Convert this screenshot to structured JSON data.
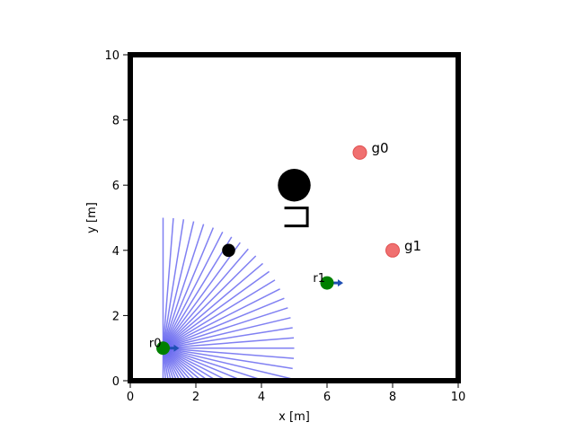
{
  "chart_data": {
    "type": "scatter",
    "title": "",
    "xlabel": "x [m]",
    "ylabel": "y [m]",
    "xlim": [
      0,
      10
    ],
    "ylim": [
      0,
      10
    ],
    "xticks": [
      "0",
      "2",
      "4",
      "6",
      "8",
      "10"
    ],
    "yticks": [
      "0",
      "2",
      "4",
      "6",
      "8",
      "10"
    ],
    "grid": false,
    "colors": {
      "robot": "#008000",
      "heading": "#1f4fb4",
      "goal": "#f07070",
      "obstacle": "#000000",
      "lidar": "#6a6af0",
      "boundary": "#000000"
    },
    "robots": [
      {
        "label": "r0",
        "x": 1.0,
        "y": 1.0,
        "heading_deg": 0
      },
      {
        "label": "r1",
        "x": 6.0,
        "y": 3.0,
        "heading_deg": 0
      }
    ],
    "goals": [
      {
        "label": "g0",
        "x": 7.0,
        "y": 7.0
      },
      {
        "label": "g1",
        "x": 8.0,
        "y": 4.0
      }
    ],
    "obstacles": [
      {
        "shape": "circle",
        "x": 5.0,
        "y": 6.0,
        "radius": 0.5
      },
      {
        "shape": "circle",
        "x": 3.0,
        "y": 4.0,
        "radius": 0.2
      },
      {
        "shape": "bracket",
        "points": [
          [
            4.7,
            5.3
          ],
          [
            5.4,
            5.3
          ],
          [
            5.4,
            4.75
          ],
          [
            4.7,
            4.75
          ]
        ]
      }
    ],
    "lidar": {
      "robot": "r0",
      "range_m": 4.0,
      "angle_min_deg": -90,
      "angle_max_deg": 90,
      "beams": 41
    }
  }
}
